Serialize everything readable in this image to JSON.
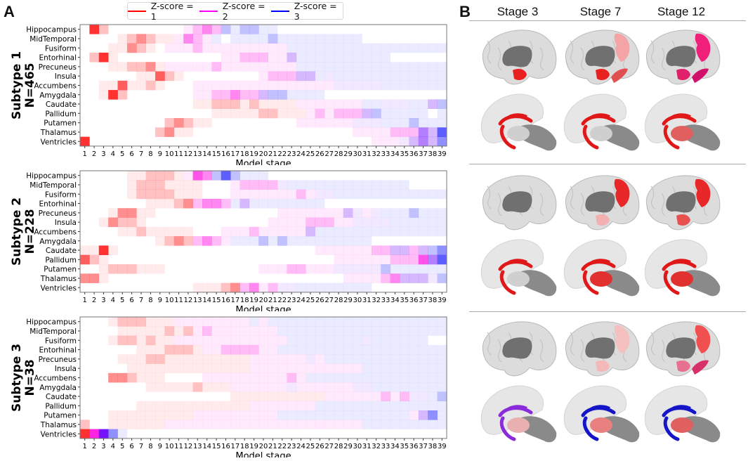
{
  "panel_a": {
    "letter": "A"
  },
  "panel_b": {
    "letter": "B",
    "stage_headers": [
      "Stage 3",
      "Stage 7",
      "Stage 12"
    ],
    "subtypes": [
      {
        "stages": [
          {
            "hippocampus": "#e82020",
            "precuneus": "",
            "fusiform": "",
            "subcortical": "#e01818",
            "thalamus": "#cfcfcf"
          },
          {
            "hippocampus": "#e82020",
            "precuneus": "#f4a4a4",
            "fusiform": "#e05050",
            "subcortical": "#e01818",
            "thalamus": "#cfcfcf"
          },
          {
            "hippocampus": "#e0206a",
            "precuneus": "#f0207a",
            "fusiform": "#d0106a",
            "subcortical": "#e01818",
            "thalamus": "#e06060"
          }
        ]
      },
      {
        "stages": [
          {
            "hippocampus": "",
            "precuneus": "",
            "fusiform": "",
            "subcortical": "#e01818",
            "thalamus": "#cfcfcf"
          },
          {
            "hippocampus": "#f2b0b0",
            "precuneus": "#e82828",
            "fusiform": "",
            "subcortical": "#e01818",
            "thalamus": "#e03030"
          },
          {
            "hippocampus": "#e85050",
            "precuneus": "#e82828",
            "fusiform": "",
            "subcortical": "#e01818",
            "thalamus": "#e03030"
          }
        ]
      },
      {
        "stages": [
          {
            "hippocampus": "",
            "precuneus": "",
            "fusiform": "",
            "subcortical": "#8a2ad8",
            "thalamus": "#e8b0b0"
          },
          {
            "hippocampus": "#f4b8b8",
            "precuneus": "#f4c0c0",
            "fusiform": "",
            "subcortical": "#1414c8",
            "thalamus": "#e88080"
          },
          {
            "hippocampus": "#e87090",
            "precuneus": "#f05050",
            "fusiform": "#d8306a",
            "subcortical": "#1414c8",
            "thalamus": "#e06060"
          }
        ]
      }
    ]
  },
  "legend": [
    {
      "label": "Z-score = 1",
      "color": "#ff0000"
    },
    {
      "label": "Z-score = 2",
      "color": "#ff00ff"
    },
    {
      "label": "Z-score = 3",
      "color": "#0000ff"
    }
  ],
  "colors": {
    "r": "#ff2020",
    "m": "#ff10e0",
    "p": "#6a00ff",
    "b": "#2020ff"
  },
  "chart_data": {
    "type": "heatmap",
    "xlabel": "Model stage",
    "x": [
      1,
      2,
      3,
      4,
      5,
      6,
      7,
      8,
      9,
      10,
      11,
      12,
      13,
      14,
      15,
      16,
      17,
      18,
      19,
      20,
      21,
      22,
      23,
      24,
      25,
      26,
      27,
      28,
      29,
      30,
      31,
      32,
      33,
      34,
      35,
      36,
      37,
      38,
      39
    ],
    "regions": [
      "Hippocampus",
      "MidTemporal",
      "Fusiform",
      "Entorhinal",
      "Precuneus",
      "Insula",
      "Accumbens",
      "Amygdala",
      "Caudate",
      "Pallidum",
      "Putamen",
      "Thalamus",
      "Ventricles"
    ],
    "cell_key": "stage(s):colour+level — r=Z-score 1, m=Z-score 2, b=Z-score 3, p=between 2 and 3; level 1-5 = probability shading",
    "subtypes": [
      {
        "name": "Subtype 1",
        "n": "N=465",
        "rows": [
          "2:r5 3:r2 12:m1 13:m2 14:m3 15:m2 16:b2 17:b1 18-19:b2 20-21:b1",
          "5:r1 6:r2 7:r3 8:r2 9-10:r1 11:m1 12:m3 13:m2 14:m1 15:b1 17-20:b1 21:b2 22-30:b1",
          "4-5:r1 6:r3 7:r2 8:r1 10-12:m1 13:m2 14-22:m1 23-39:b1",
          "2:r2 3:r5 4:r1 16-17:m1 18-20:m2 21-22:m1 23:p2 24-33:b1",
          "4-5:r1 6-7:r2 8:r3 9:r1 10-14:m1 15:m2 16-23:m1 24-39:b1",
          "7-8:r1 9:r4 10:r2 11:r1 20:m1 21-23:m2 24-25:p2 26:b1 27:p1 28-39:b1",
          "3-4:r1 5:r4 6-7:r1 8:r2 9:r1 13-27:m1 28-32:p1 33-39:b1",
          "3:r1 4:r5 5:r2 13-14:m1 15-16:m2 17:m3 18-19:m2 20:p2 21-22:b2 23-26:b1",
          "13-14:r1 15-17:r2 18:r1 19:r2 20-23:r1 24-30:m1 31-32:b1 33-35:p1 36-37:b1 38:p2 39:b2",
          "15-19:r1 20-21:r2 22-24:r1 25:m1 26:m2 27:m1 28-30:m2 31:p2 32:b2 33-37:b1 39:b1",
          "10:r2 11:r3 12:r2 13-14:r1 24-29:m1 30-32:p1 33-35:b1 36:b2 37-39:b1",
          "9:r2 10:r3 11-12:r1 30-33:m1 34-36:m2 37:p3 38:p2 39:b4",
          "1:r5 32-34:m1 35:p1 36:p2 37:p3 38:p2 39:b3"
        ]
      },
      {
        "name": "Subtype 2",
        "n": "N=228",
        "rows": [
          "6-7:r1 8-10:r2 11:r1 12:m1 13:m4 14:m3 15:b2 16:b4 17:b2 18-20:b1",
          "6:r1 7-9:r2 10-13:r1 17:m1 18-21:m2 22:p1 23-35:b1",
          "6:r1 7-10:r2 11-13:r1 17-23:m1 24:m2 25:m1 26-27:p1 28-39:b1",
          "8-10:r1 11:r2 12:r3 13:m2 14-15:m3 16:m2 17:b1 18:p2 19-26:b1",
          "4:r1 5-6:r3 7-8:r1 22-28:m1 29:p2 30:p1 31:m1 32:p1 33-35:b1 36:b2 37-39:b1",
          "3:r1 4:r3 5-6:r2 7:r1 21-24:m1 25-27:m2 28-29:m1 30-33:p1 34-39:b1",
          "5-6:r1 7:r2 8-12:r1 16-18:m1 19:m2 20-24:m1 25:p2 26-39:b1",
          "9:r1 10:r2 11:r3 12:r2 13:m2 14:m3 15:m2 16:m1 17-19:b1 20:b2 21:b1 22:b2 23-31:b1",
          "1-2:r1 3:r5 4:r1 26-31:m1 32-33:m2 34-35:p2 36:m2 37:p2 38:b2 39:b3",
          "1:r4 2:r2 3:r1 28-33:m1 34-36:m2 37:m4 38:p3 39:b4",
          "3:r1 4-6:r2 7-9:r1 20-22:m1 23-24:m2 25-27:m1 28-32:p1 33:b2 34-39:b1",
          "1-2:r3 3:r1 29-32:m1 33:m2 34:m3 35-37:p2 38:p1 39:b2",
          "13-15:r1 16:r2 17:r3 18:m2 19:m3 20:m1 21:m2 22-23:p1 24-31:b1"
        ]
      },
      {
        "name": "Subtype 3",
        "n": "N=38",
        "rows": [
          "4:r1 5-7:r2 8-10:r1 11-18:m1 19:b1 20:m1 21-39:b1",
          "5-9:r1 10:r2 11:r1 12:r2 13:m1 14:m2 15-21:m1 22-39:b1",
          "4:r1 5-6:r2 7:r1 8:r2 9-10:r1 11-22:m1 23-30:b1 31:p1 32-37:b1",
          "7-9:r1 10-12:r2 13:r1 14-15:m1 16-19:m2 20-21:m1 22-39:b1",
          "5-7:r1 8-9:r2 10-18:r1 19-24:m1 25:p1 26:m1 27-39:b1",
          "6-18:r1 19-30:m1 31-39:b1",
          "4-5:r3 6:r2 7-9:r1 14-22:m1 23:m2 24:m1 25-39:b1",
          "8-12:r1 13:r2 14-16:r1 17-22:m1 23:p1 24-29:m1 30-31:p1 32-39:b1",
          "17-26:r1 27-32:m1 33:m2 34:m1 35:m2 36-37:p1 38:b1 39:b2",
          "7-18:r1 19-25:m1 26-39:b1",
          "4-12:r1 13-21:m1 22-35:b1 36:m1 37:p2 38:b3 39:b1",
          "1:r2 4-9:r1 10-30:m1 31-39:b1",
          "1:r5 2:m5 3:p5 4:b3 5:b1"
        ]
      }
    ]
  }
}
